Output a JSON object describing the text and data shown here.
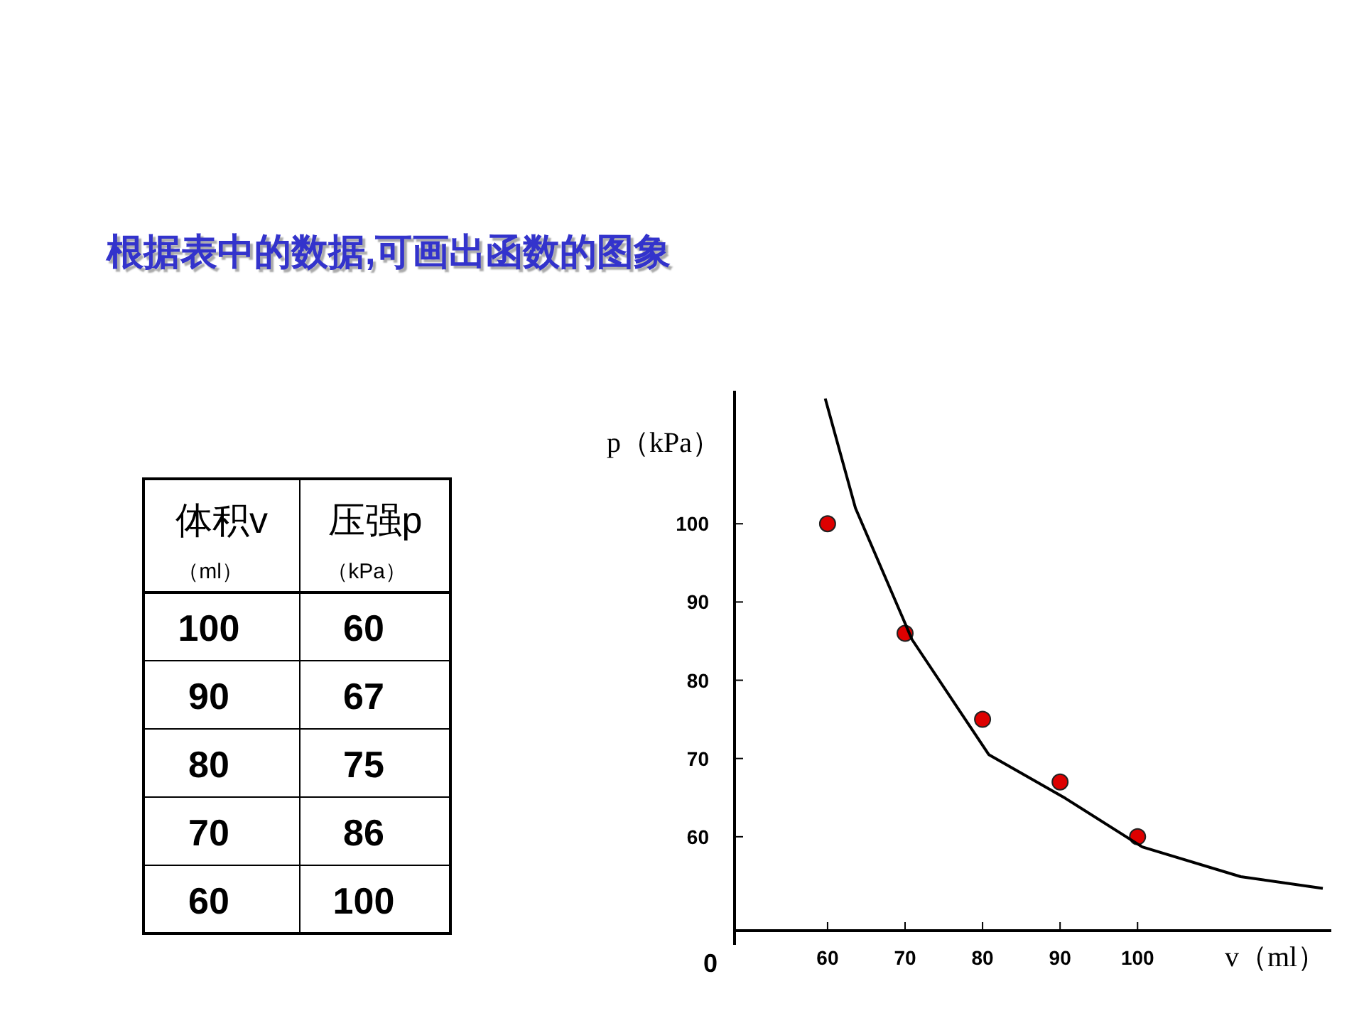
{
  "chart_data": {
    "type": "scatter",
    "title": "根据表中的数据,可画出函数的图象",
    "xlabel": "v（ml）",
    "ylabel": "p（kPa）",
    "xlim": [
      48,
      125
    ],
    "ylim": [
      48,
      117
    ],
    "xticks": [
      60,
      70,
      80,
      90,
      100
    ],
    "yticks": [
      60,
      70,
      80,
      90,
      100
    ],
    "annotations": [
      "0",
      "体积v",
      "（ml）",
      "压强p",
      "（kPa）",
      "100",
      "60",
      "90",
      "67",
      "80",
      "75",
      "70",
      "86",
      "60",
      "100"
    ],
    "series": [
      {
        "type": "scatter",
        "marker": "circle",
        "color": "#dd0000",
        "x": [
          60,
          70,
          80,
          90,
          100
        ],
        "values": [
          100,
          86,
          75,
          67,
          60
        ]
      },
      {
        "type": "line",
        "marker": "none",
        "color": "#000000",
        "x": [
          59.7,
          63.6,
          70.9,
          80.8,
          90.7,
          100.6,
          113.3,
          123.9
        ],
        "values": [
          116,
          102,
          85.2,
          70.5,
          64.9,
          58.7,
          54.9,
          53.4
        ]
      }
    ]
  }
}
